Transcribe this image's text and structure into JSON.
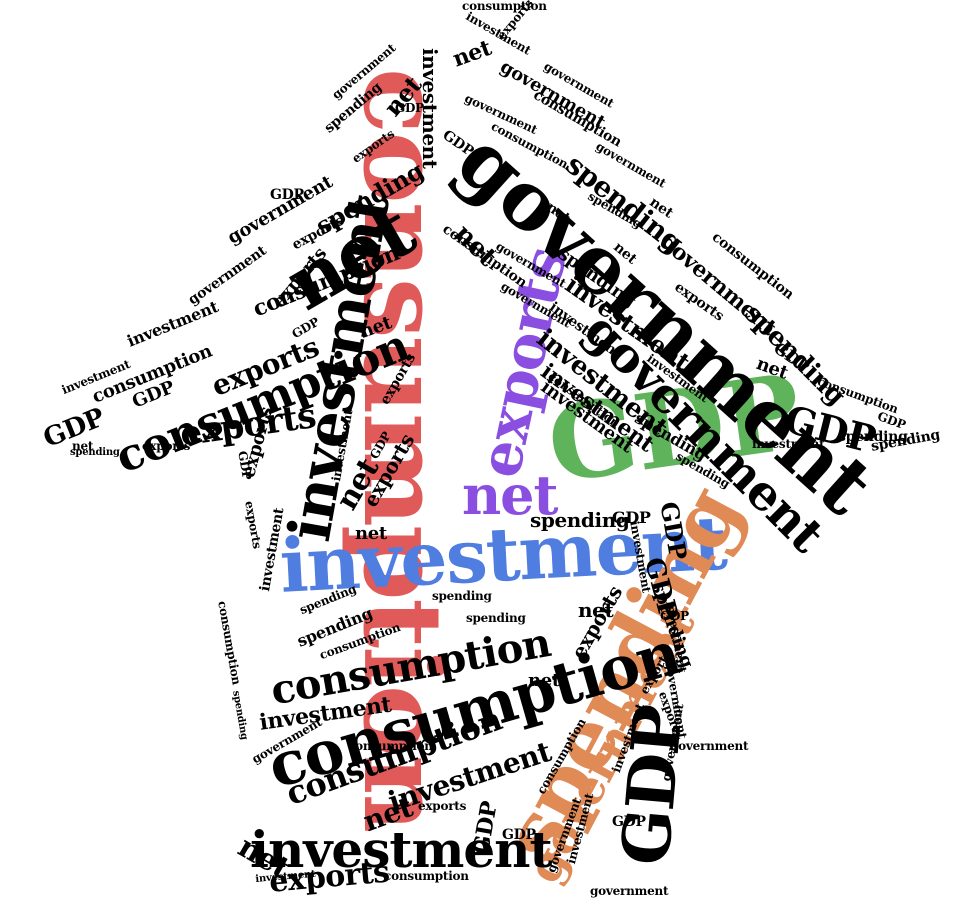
{
  "colors": {
    "background": "#ffffff",
    "default": "#000000",
    "red": "#e05a5a",
    "purple": "#8a4fe0",
    "green": "#5fb35a",
    "blue": "#4f7de0",
    "orange": "#e08a55"
  },
  "words": [
    {
      "text": "consumption",
      "color": "red"
    },
    {
      "text": "GDP",
      "color": "green"
    },
    {
      "text": "investment",
      "color": "blue"
    },
    {
      "text": "spending",
      "color": "orange"
    },
    {
      "text": "exports",
      "color": "purple"
    },
    {
      "text": "net",
      "color": "purple"
    },
    {
      "text": "government",
      "color": "orange"
    },
    {
      "text": "government",
      "color": "default"
    },
    {
      "text": "net",
      "color": "default"
    },
    {
      "text": "investment",
      "color": "default"
    },
    {
      "text": "consumption",
      "color": "default"
    },
    {
      "text": "consumption",
      "color": "default"
    },
    {
      "text": "consumption",
      "color": "default"
    },
    {
      "text": "investment",
      "color": "default"
    },
    {
      "text": "GDP",
      "color": "default"
    },
    {
      "text": "government",
      "color": "default"
    },
    {
      "text": "exports",
      "color": "default"
    },
    {
      "text": "consumption",
      "color": "default"
    },
    {
      "text": "exports",
      "color": "default"
    },
    {
      "text": "GDP",
      "color": "default"
    },
    {
      "text": "spending",
      "color": "default"
    },
    {
      "text": "spending",
      "color": "default"
    },
    {
      "text": "investment",
      "color": "default"
    },
    {
      "text": "net",
      "color": "default"
    },
    {
      "text": "GDP",
      "color": "default"
    },
    {
      "text": "net",
      "color": "default"
    },
    {
      "text": "investment",
      "color": "default"
    },
    {
      "text": "spending",
      "color": "default"
    },
    {
      "text": "investment",
      "color": "default"
    },
    {
      "text": "exports",
      "color": "default"
    },
    {
      "text": "net",
      "color": "default"
    },
    {
      "text": "GDP",
      "color": "default"
    },
    {
      "text": "investment",
      "color": "default"
    },
    {
      "text": "consumption",
      "color": "default"
    },
    {
      "text": "government",
      "color": "default"
    },
    {
      "text": "spending",
      "color": "default"
    },
    {
      "text": "GDP",
      "color": "default"
    },
    {
      "text": "net",
      "color": "default"
    },
    {
      "text": "government",
      "color": "default"
    },
    {
      "text": "net",
      "color": "default"
    },
    {
      "text": "exports",
      "color": "default"
    },
    {
      "text": "net",
      "color": "default"
    },
    {
      "text": "investment",
      "color": "default"
    },
    {
      "text": "exports",
      "color": "default"
    },
    {
      "text": "investment",
      "color": "default"
    },
    {
      "text": "net",
      "color": "default"
    },
    {
      "text": "net",
      "color": "default"
    },
    {
      "text": "exports",
      "color": "default"
    },
    {
      "text": "spending",
      "color": "default"
    },
    {
      "text": "GDP",
      "color": "default"
    },
    {
      "text": "net",
      "color": "default"
    },
    {
      "text": "investment",
      "color": "default"
    },
    {
      "text": "exports",
      "color": "default"
    },
    {
      "text": "net",
      "color": "default"
    },
    {
      "text": "consumption",
      "color": "default"
    },
    {
      "text": "investment",
      "color": "default"
    },
    {
      "text": "spending",
      "color": "default"
    },
    {
      "text": "net",
      "color": "default"
    },
    {
      "text": "spending",
      "color": "default"
    },
    {
      "text": "GDP",
      "color": "default"
    },
    {
      "text": "consumption",
      "color": "default"
    },
    {
      "text": "government",
      "color": "default"
    },
    {
      "text": "consumption",
      "color": "default"
    },
    {
      "text": "spending",
      "color": "default"
    },
    {
      "text": "GDP",
      "color": "default"
    },
    {
      "text": "exports",
      "color": "default"
    },
    {
      "text": "net",
      "color": "default"
    },
    {
      "text": "net",
      "color": "default"
    },
    {
      "text": "GDP",
      "color": "default"
    },
    {
      "text": "consumption",
      "color": "default"
    },
    {
      "text": "GDP",
      "color": "default"
    },
    {
      "text": "spending",
      "color": "default"
    },
    {
      "text": "exports",
      "color": "default"
    },
    {
      "text": "spending",
      "color": "default"
    },
    {
      "text": "government",
      "color": "default"
    },
    {
      "text": "GDP",
      "color": "default"
    },
    {
      "text": "investment",
      "color": "default"
    },
    {
      "text": "net",
      "color": "default"
    },
    {
      "text": "government",
      "color": "default"
    },
    {
      "text": "exports",
      "color": "default"
    },
    {
      "text": "GDP",
      "color": "default"
    },
    {
      "text": "investment",
      "color": "default"
    },
    {
      "text": "spending",
      "color": "default"
    },
    {
      "text": "government",
      "color": "default"
    },
    {
      "text": "consumption",
      "color": "default"
    },
    {
      "text": "net",
      "color": "default"
    },
    {
      "text": "consumption",
      "color": "default"
    },
    {
      "text": "exports",
      "color": "default"
    },
    {
      "text": "government",
      "color": "default"
    },
    {
      "text": "government",
      "color": "default"
    },
    {
      "text": "government",
      "color": "default"
    },
    {
      "text": "investment",
      "color": "default"
    },
    {
      "text": "consumption",
      "color": "default"
    },
    {
      "text": "government",
      "color": "default"
    },
    {
      "text": "spending",
      "color": "default"
    },
    {
      "text": "GDP",
      "color": "default"
    },
    {
      "text": "GDP",
      "color": "default"
    },
    {
      "text": "spending",
      "color": "default"
    },
    {
      "text": "exports",
      "color": "default"
    },
    {
      "text": "investment",
      "color": "default"
    },
    {
      "text": "GDP",
      "color": "default"
    },
    {
      "text": "consumption",
      "color": "default"
    },
    {
      "text": "consumption",
      "color": "default"
    },
    {
      "text": "investment",
      "color": "default"
    },
    {
      "text": "government",
      "color": "default"
    },
    {
      "text": "government",
      "color": "default"
    },
    {
      "text": "investment",
      "color": "default"
    },
    {
      "text": "GDP",
      "color": "default"
    },
    {
      "text": "investment",
      "color": "default"
    },
    {
      "text": "spending",
      "color": "default"
    },
    {
      "text": "consumption",
      "color": "default"
    },
    {
      "text": "investment",
      "color": "default"
    },
    {
      "text": "investment",
      "color": "default"
    },
    {
      "text": "consumption",
      "color": "default"
    },
    {
      "text": "exports",
      "color": "default"
    },
    {
      "text": "investment",
      "color": "default"
    },
    {
      "text": "GDP",
      "color": "default"
    },
    {
      "text": "spending",
      "color": "default"
    },
    {
      "text": "government",
      "color": "default"
    },
    {
      "text": "consumption",
      "color": "default"
    },
    {
      "text": "government",
      "color": "default"
    },
    {
      "text": "exports",
      "color": "default"
    },
    {
      "text": "spending",
      "color": "default"
    },
    {
      "text": "investment",
      "color": "default"
    },
    {
      "text": "exports",
      "color": "default"
    },
    {
      "text": "exports",
      "color": "default"
    },
    {
      "text": "government",
      "color": "default"
    },
    {
      "text": "investment",
      "color": "default"
    },
    {
      "text": "consumption",
      "color": "default"
    },
    {
      "text": "government",
      "color": "default"
    },
    {
      "text": "spending",
      "color": "default"
    },
    {
      "text": "GDP",
      "color": "default"
    },
    {
      "text": "exports",
      "color": "default"
    },
    {
      "text": "spending",
      "color": "default"
    },
    {
      "text": "GDP",
      "color": "default"
    }
  ]
}
